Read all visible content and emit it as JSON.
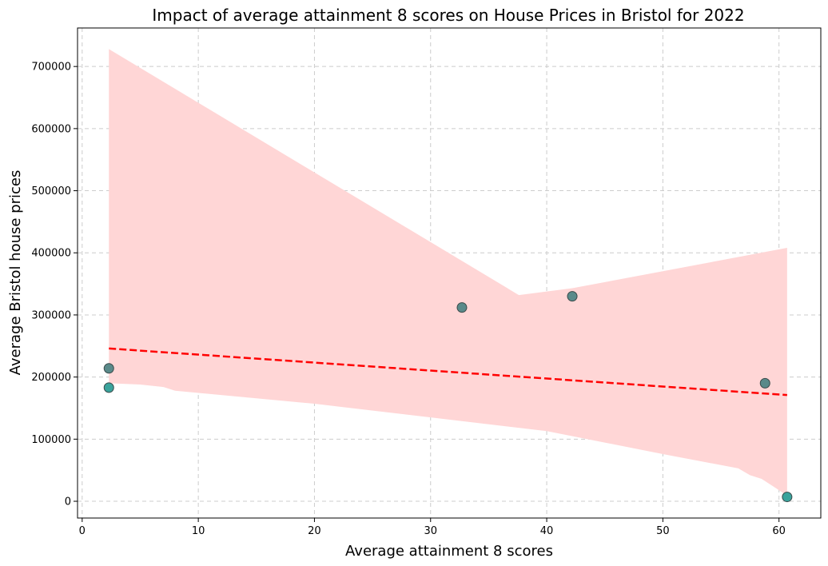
{
  "chart_data": {
    "type": "scatter",
    "title": "Impact of average attainment 8 scores on House Prices in Bristol for 2022",
    "xlabel": "Average attainment 8 scores",
    "ylabel": "Average Bristol house prices",
    "xlim": [
      -0.4,
      63.6
    ],
    "ylim": [
      -27000,
      762000
    ],
    "xticks": [
      0,
      10,
      20,
      30,
      40,
      50,
      60
    ],
    "yticks": [
      0,
      100000,
      200000,
      300000,
      400000,
      500000,
      600000,
      700000
    ],
    "grid": true,
    "points": [
      {
        "x": 2.3,
        "y": 214000,
        "color": "#5a8a8a"
      },
      {
        "x": 2.3,
        "y": 183000,
        "color": "#3aa39c"
      },
      {
        "x": 32.7,
        "y": 312000,
        "color": "#5a8a8a"
      },
      {
        "x": 42.2,
        "y": 330000,
        "color": "#5a8a8a"
      },
      {
        "x": 58.8,
        "y": 190000,
        "color": "#5a8a8a"
      },
      {
        "x": 60.7,
        "y": 7000,
        "color": "#3aa39c"
      }
    ],
    "regression_line": {
      "x": [
        2.3,
        60.7
      ],
      "y": [
        246000,
        171000
      ],
      "color": "#ff0000",
      "style": "dashed"
    },
    "confidence_band": {
      "color": "#ffd6d6",
      "upper": [
        [
          2.3,
          728000
        ],
        [
          37.6,
          332000
        ],
        [
          42.2,
          343000
        ],
        [
          60.7,
          408000
        ]
      ],
      "lower": [
        [
          2.3,
          190000
        ],
        [
          5,
          188000
        ],
        [
          7,
          184000
        ],
        [
          8,
          178000
        ],
        [
          20,
          157000
        ],
        [
          30,
          135000
        ],
        [
          40,
          113000
        ],
        [
          50,
          76000
        ],
        [
          56.5,
          53000
        ],
        [
          57.5,
          42000
        ],
        [
          58.5,
          36000
        ],
        [
          59.5,
          24000
        ],
        [
          60.7,
          9000
        ]
      ]
    }
  }
}
